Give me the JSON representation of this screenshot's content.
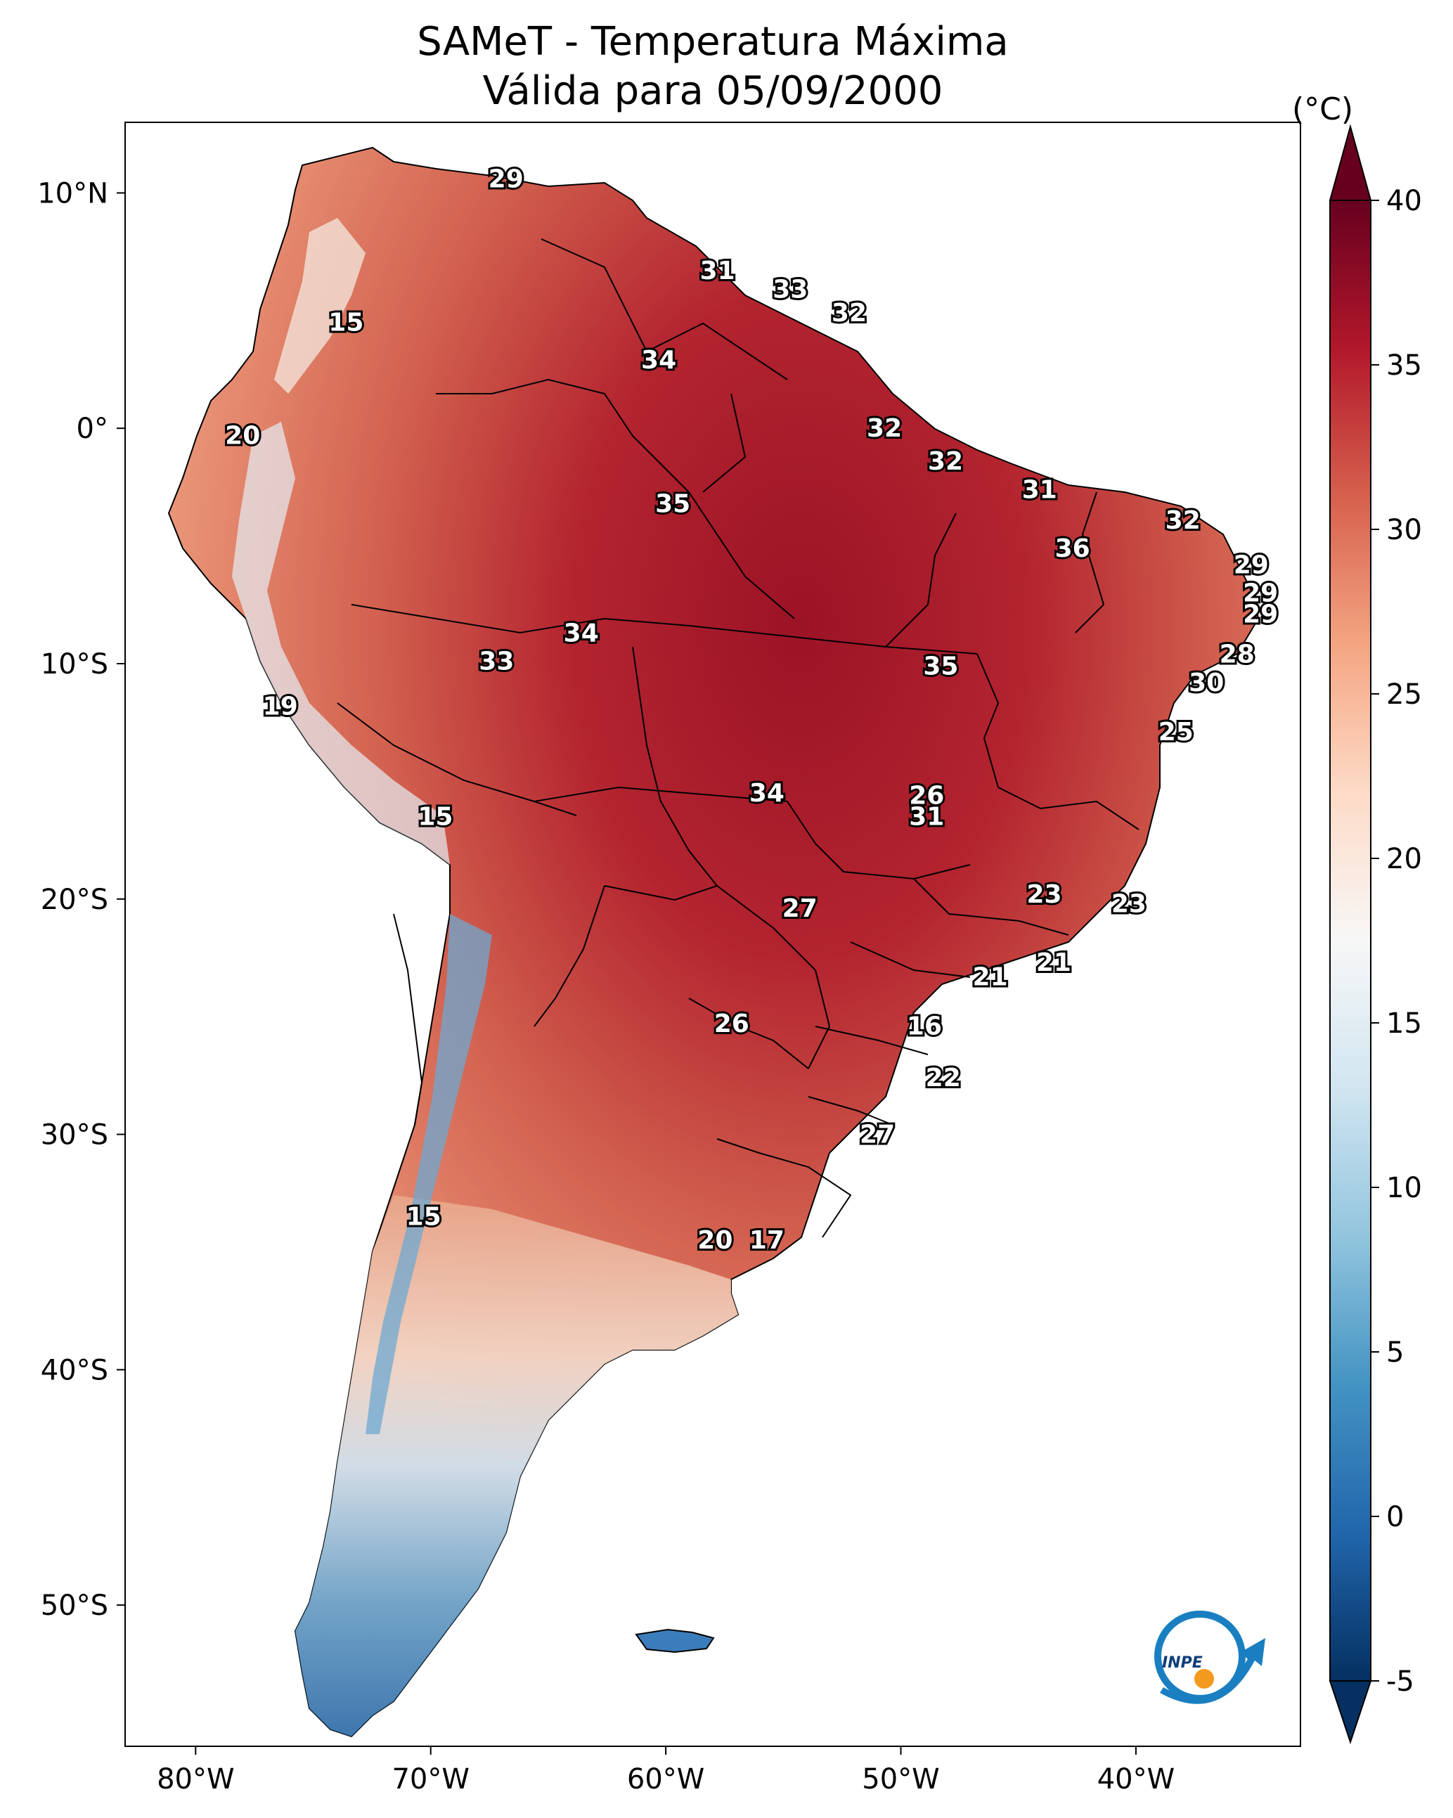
{
  "title": {
    "line1": "SAMeT - Temperatura Máxima",
    "line2": "Válida para 05/09/2000"
  },
  "colorbar": {
    "unit": "(°C)",
    "min": -5,
    "max": 40,
    "ticks": [
      {
        "value": 40,
        "label": "40"
      },
      {
        "value": 35,
        "label": "35"
      },
      {
        "value": 30,
        "label": "30"
      },
      {
        "value": 25,
        "label": "25"
      },
      {
        "value": 20,
        "label": "20"
      },
      {
        "value": 15,
        "label": "15"
      },
      {
        "value": 10,
        "label": "10"
      },
      {
        "value": 5,
        "label": "5"
      },
      {
        "value": 0,
        "label": "0"
      },
      {
        "value": -5,
        "label": "-5"
      }
    ],
    "colors": [
      "#053061",
      "#2166ac",
      "#4393c3",
      "#92c5de",
      "#d1e5f0",
      "#f7f7f7",
      "#fddbc7",
      "#f4a582",
      "#d6604d",
      "#b2182b",
      "#67001f"
    ]
  },
  "axes": {
    "lon_range": [
      -83,
      -33
    ],
    "lat_range": [
      -56,
      13
    ],
    "x_ticks": [
      {
        "value": -80,
        "label": "80°W"
      },
      {
        "value": -70,
        "label": "70°W"
      },
      {
        "value": -60,
        "label": "60°W"
      },
      {
        "value": -50,
        "label": "50°W"
      },
      {
        "value": -40,
        "label": "40°W"
      }
    ],
    "y_ticks": [
      {
        "value": 10,
        "label": "10°N"
      },
      {
        "value": 0,
        "label": "0°"
      },
      {
        "value": -10,
        "label": "10°S"
      },
      {
        "value": -20,
        "label": "20°S"
      },
      {
        "value": -30,
        "label": "30°S"
      },
      {
        "value": -40,
        "label": "40°S"
      },
      {
        "value": -50,
        "label": "50°S"
      }
    ]
  },
  "map_labels": [
    {
      "text": "29",
      "lon": -66.8,
      "lat": 10.6,
      "value": 29
    },
    {
      "text": "15",
      "lon": -73.6,
      "lat": 4.5,
      "value": 15
    },
    {
      "text": "31",
      "lon": -57.8,
      "lat": 6.7,
      "value": 31
    },
    {
      "text": "33",
      "lon": -54.7,
      "lat": 5.9,
      "value": 33
    },
    {
      "text": "32",
      "lon": -52.2,
      "lat": 4.9,
      "value": 32
    },
    {
      "text": "34",
      "lon": -60.3,
      "lat": 2.9,
      "value": 34
    },
    {
      "text": "20",
      "lon": -78.0,
      "lat": -0.3,
      "value": 20
    },
    {
      "text": "32",
      "lon": -50.7,
      "lat": 0.0,
      "value": 32
    },
    {
      "text": "32",
      "lon": -48.1,
      "lat": -1.4,
      "value": 32
    },
    {
      "text": "35",
      "lon": -59.7,
      "lat": -3.2,
      "value": 35
    },
    {
      "text": "31",
      "lon": -44.1,
      "lat": -2.6,
      "value": 31
    },
    {
      "text": "32",
      "lon": -38.0,
      "lat": -3.9,
      "value": 32
    },
    {
      "text": "36",
      "lon": -42.7,
      "lat": -5.1,
      "value": 36
    },
    {
      "text": "29",
      "lon": -35.1,
      "lat": -5.8,
      "value": 29
    },
    {
      "text": "29",
      "lon": -34.7,
      "lat": -7.0,
      "value": 29
    },
    {
      "text": "29",
      "lon": -34.7,
      "lat": -7.9,
      "value": 29
    },
    {
      "text": "34",
      "lon": -63.6,
      "lat": -8.7,
      "value": 34
    },
    {
      "text": "33",
      "lon": -67.2,
      "lat": -9.9,
      "value": 33
    },
    {
      "text": "28",
      "lon": -35.7,
      "lat": -9.6,
      "value": 28
    },
    {
      "text": "35",
      "lon": -48.3,
      "lat": -10.1,
      "value": 35
    },
    {
      "text": "30",
      "lon": -37.0,
      "lat": -10.8,
      "value": 30
    },
    {
      "text": "19",
      "lon": -76.4,
      "lat": -11.8,
      "value": 19
    },
    {
      "text": "25",
      "lon": -38.3,
      "lat": -12.9,
      "value": 25
    },
    {
      "text": "26",
      "lon": -48.9,
      "lat": -15.6,
      "value": 26
    },
    {
      "text": "34",
      "lon": -55.7,
      "lat": -15.5,
      "value": 34
    },
    {
      "text": "15",
      "lon": -69.8,
      "lat": -16.5,
      "value": 15
    },
    {
      "text": "31",
      "lon": -48.9,
      "lat": -16.5,
      "value": 31
    },
    {
      "text": "23",
      "lon": -43.9,
      "lat": -19.8,
      "value": 23
    },
    {
      "text": "23",
      "lon": -40.3,
      "lat": -20.2,
      "value": 23
    },
    {
      "text": "27",
      "lon": -54.3,
      "lat": -20.4,
      "value": 27
    },
    {
      "text": "21",
      "lon": -43.5,
      "lat": -22.7,
      "value": 21
    },
    {
      "text": "21",
      "lon": -46.2,
      "lat": -23.3,
      "value": 21
    },
    {
      "text": "26",
      "lon": -57.2,
      "lat": -25.3,
      "value": 26
    },
    {
      "text": "16",
      "lon": -49.0,
      "lat": -25.4,
      "value": 16
    },
    {
      "text": "22",
      "lon": -48.2,
      "lat": -27.6,
      "value": 22
    },
    {
      "text": "27",
      "lon": -51.0,
      "lat": -30.0,
      "value": 27
    },
    {
      "text": "15",
      "lon": -70.3,
      "lat": -33.5,
      "value": 15
    },
    {
      "text": "20",
      "lon": -57.9,
      "lat": -34.5,
      "value": 20
    },
    {
      "text": "17",
      "lon": -55.7,
      "lat": -34.5,
      "value": 17
    }
  ]
}
